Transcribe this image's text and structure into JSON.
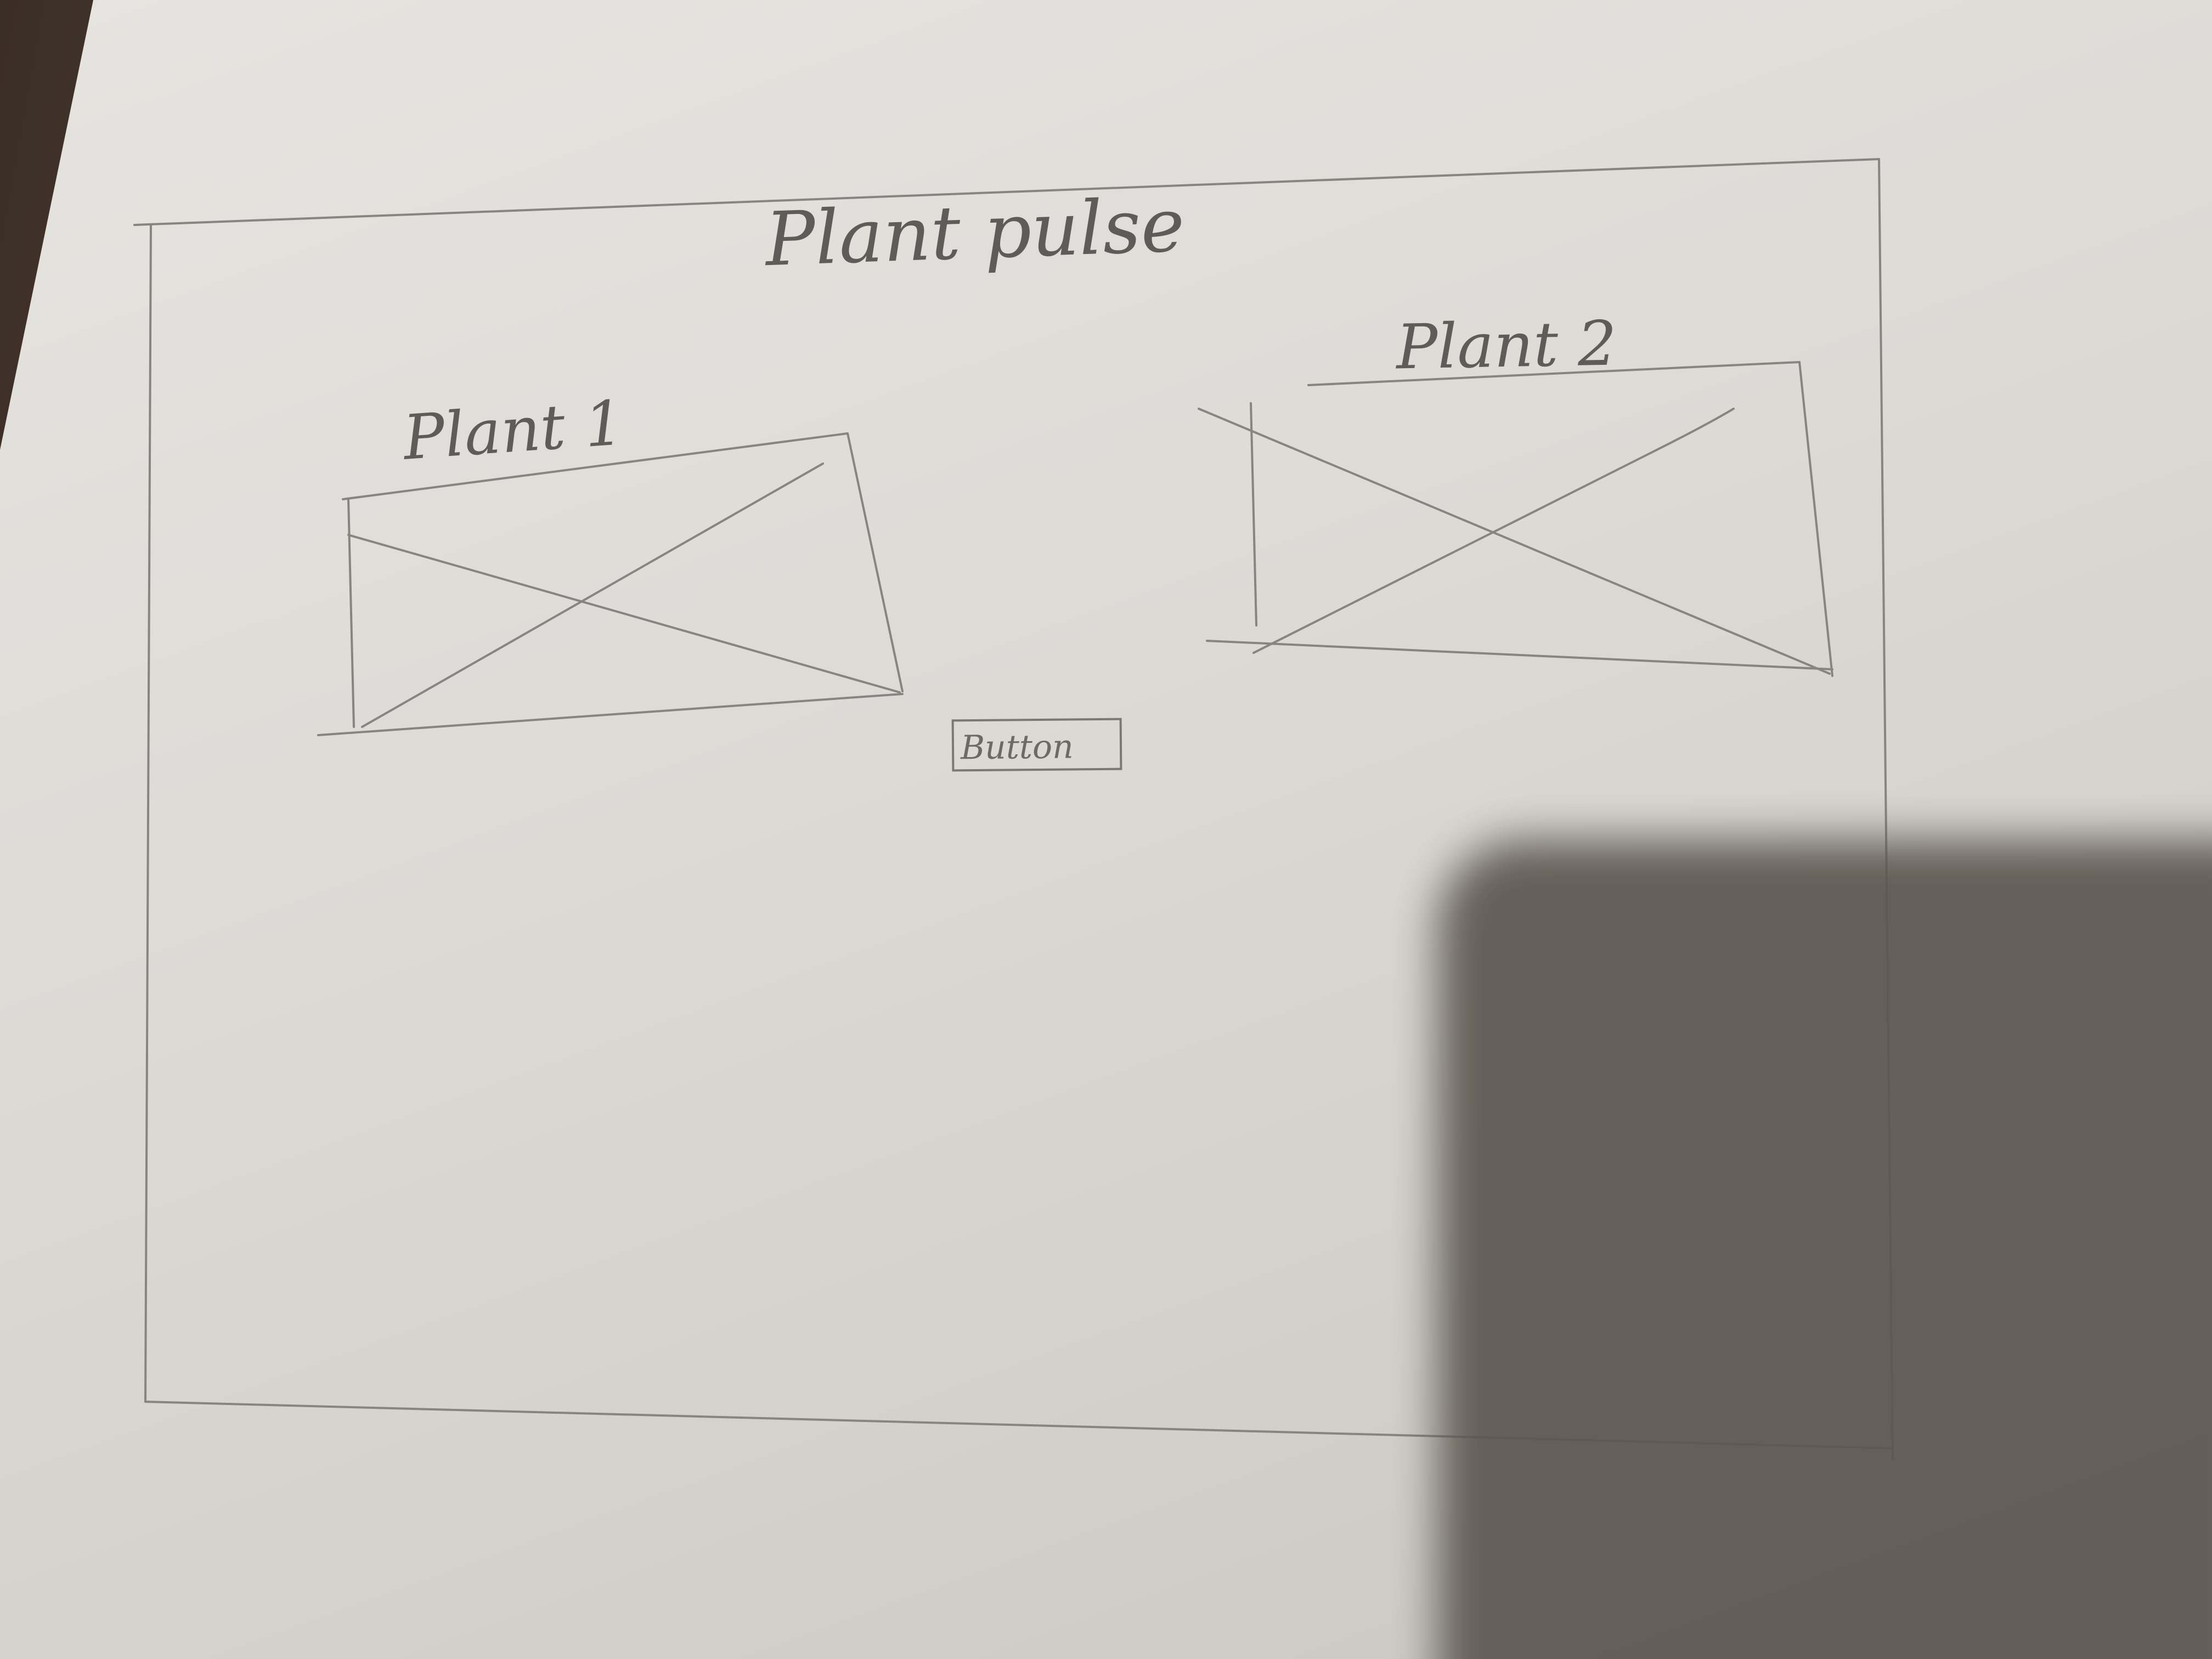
{
  "app": {
    "title": "Plant pulse"
  },
  "plants": [
    {
      "label": "Plant 1"
    },
    {
      "label": "Plant 2"
    }
  ],
  "actions": {
    "button_label": "Button"
  },
  "colors": {
    "pencil": "#7b7975",
    "paper": "#dddbd6",
    "background": "#3b2e26"
  }
}
